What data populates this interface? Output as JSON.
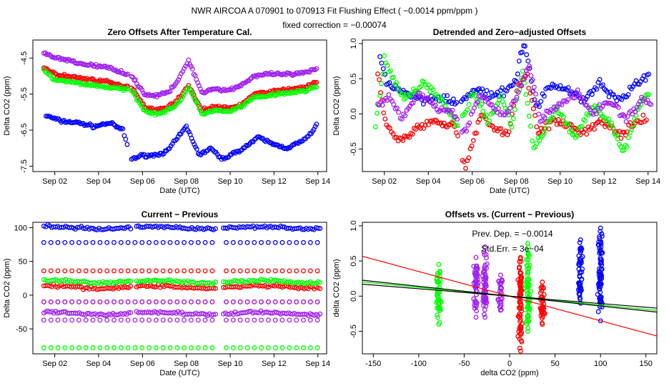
{
  "figure": {
    "title": "NWR   AIRCOA A   070901 to 070913   Fit Flushing Effect ( −0.0014 ppm/ppm )",
    "subtitle": "fixed correction = −0.00074"
  },
  "colors": {
    "blue": "#0000ff",
    "red": "#ff0000",
    "green": "#00ff00",
    "purple": "#a020f0",
    "black": "#000000"
  },
  "chart_data": [
    {
      "type": "scatter",
      "title": "Zero Offsets After Temperature Cal.",
      "xlabel": "Date (UTC)",
      "ylabel": "Delta CO2 (ppm)",
      "xlim": [
        0.5,
        13.9
      ],
      "ylim": [
        -7.65,
        -4.0
      ],
      "x_ticks": [
        {
          "v": 1.5,
          "label": "Sep 02"
        },
        {
          "v": 3.5,
          "label": "Sep 04"
        },
        {
          "v": 5.5,
          "label": "Sep 06"
        },
        {
          "v": 7.5,
          "label": "Sep 08"
        },
        {
          "v": 9.5,
          "label": "Sep 10"
        },
        {
          "v": 11.5,
          "label": "Sep 12"
        },
        {
          "v": 13.5,
          "label": "Sep 14"
        }
      ],
      "y_ticks": [
        {
          "v": -4.5,
          "label": "-4.5"
        },
        {
          "v": -5.5,
          "label": "-5.5"
        },
        {
          "v": -6.5,
          "label": "-6.5"
        },
        {
          "v": -7.5,
          "label": "-7.5"
        }
      ],
      "series": [
        {
          "name": "blue",
          "color": "#0000ff",
          "x": [
            1.1,
            1.8,
            2.6,
            3.3,
            4.0,
            4.6,
            5.0,
            5.5,
            6.0,
            6.6,
            7.0,
            7.5,
            8.1,
            8.6,
            9.1,
            9.5,
            10.1,
            10.8,
            11.5,
            12.1,
            12.8,
            13.2,
            13.5
          ],
          "y": [
            -6.1,
            -6.25,
            -6.3,
            -6.4,
            -6.3,
            -6.5,
            -7.3,
            -7.2,
            -7.2,
            -7.1,
            -6.8,
            -6.4,
            -7.2,
            -7.0,
            -7.3,
            -7.2,
            -7.0,
            -6.7,
            -6.9,
            -7.0,
            -6.8,
            -6.6,
            -6.3
          ]
        },
        {
          "name": "red",
          "color": "#ff0000",
          "x": [
            1.0,
            1.5,
            2.0,
            2.6,
            3.2,
            3.8,
            4.4,
            5.0,
            5.6,
            6.1,
            6.7,
            7.2,
            7.6,
            8.2,
            8.8,
            9.4,
            10.0,
            10.6,
            11.2,
            11.8,
            12.4,
            13.0,
            13.5
          ],
          "y": [
            -4.75,
            -4.95,
            -5.0,
            -5.05,
            -5.1,
            -5.15,
            -5.25,
            -5.3,
            -5.85,
            -5.95,
            -5.85,
            -5.6,
            -5.25,
            -5.95,
            -5.85,
            -5.9,
            -5.8,
            -5.5,
            -5.45,
            -5.4,
            -5.35,
            -5.3,
            -5.15
          ]
        },
        {
          "name": "green",
          "color": "#00ff00",
          "x": [
            1.0,
            1.5,
            2.0,
            2.6,
            3.2,
            3.8,
            4.4,
            5.0,
            5.6,
            6.1,
            6.7,
            7.2,
            7.6,
            8.2,
            8.8,
            9.4,
            10.0,
            10.6,
            11.2,
            11.8,
            12.4,
            13.0,
            13.5
          ],
          "y": [
            -4.85,
            -5.1,
            -5.15,
            -5.2,
            -5.25,
            -5.3,
            -5.35,
            -5.4,
            -5.95,
            -6.05,
            -5.95,
            -5.7,
            -5.3,
            -6.05,
            -5.95,
            -6.0,
            -5.85,
            -5.6,
            -5.55,
            -5.5,
            -5.45,
            -5.4,
            -5.25
          ]
        },
        {
          "name": "purple",
          "color": "#a020f0",
          "x": [
            1.0,
            1.5,
            2.0,
            2.6,
            3.2,
            3.8,
            4.4,
            5.0,
            5.6,
            6.1,
            6.7,
            7.2,
            7.6,
            8.2,
            8.8,
            9.4,
            10.0,
            10.6,
            11.2,
            11.8,
            12.4,
            13.0,
            13.5
          ],
          "y": [
            -4.35,
            -4.5,
            -4.55,
            -4.65,
            -4.7,
            -4.75,
            -4.85,
            -5.0,
            -5.5,
            -5.55,
            -5.45,
            -5.05,
            -4.55,
            -5.45,
            -5.35,
            -5.4,
            -5.25,
            -5.0,
            -4.95,
            -4.95,
            -4.95,
            -4.9,
            -4.8
          ]
        }
      ]
    },
    {
      "type": "scatter",
      "title": "Detrended and Zero−adjusted Offsets",
      "xlabel": "Date (UTC)",
      "ylabel": "Delta CO2 (ppm)",
      "xlim": [
        0.5,
        13.9
      ],
      "ylim": [
        -0.82,
        1.05
      ],
      "x_ticks": [
        {
          "v": 1.5,
          "label": "Sep 02"
        },
        {
          "v": 3.5,
          "label": "Sep 04"
        },
        {
          "v": 5.5,
          "label": "Sep 06"
        },
        {
          "v": 7.5,
          "label": "Sep 08"
        },
        {
          "v": 9.5,
          "label": "Sep 10"
        },
        {
          "v": 11.5,
          "label": "Sep 12"
        },
        {
          "v": 13.5,
          "label": "Sep 14"
        }
      ],
      "y_ticks": [
        {
          "v": -0.5,
          "label": "-0.5"
        },
        {
          "v": 0.0,
          "label": "0.0"
        },
        {
          "v": 0.5,
          "label": "0.5"
        },
        {
          "v": 1.0,
          "label": "1.0"
        }
      ],
      "series": [
        {
          "name": "blue",
          "color": "#0000ff",
          "x": [
            1.3,
            1.6,
            2.5,
            3.2,
            4.0,
            5.0,
            5.6,
            6.3,
            7.0,
            7.5,
            7.7,
            7.9,
            8.4,
            9.0,
            9.8,
            10.6,
            11.3,
            12.0,
            12.6,
            13.6
          ],
          "y": [
            0.82,
            0.45,
            0.3,
            0.2,
            0.25,
            0.15,
            0.35,
            0.25,
            0.3,
            0.5,
            0.85,
            0.97,
            0.1,
            0.4,
            0.35,
            0.2,
            0.45,
            0.2,
            0.3,
            0.6
          ]
        },
        {
          "name": "red",
          "color": "#ff0000",
          "x": [
            1.2,
            1.6,
            2.2,
            3.0,
            3.8,
            4.7,
            5.2,
            5.9,
            6.5,
            7.1,
            7.6,
            8.0,
            8.5,
            9.2,
            10.0,
            10.7,
            11.4,
            12.2,
            12.9,
            13.5
          ],
          "y": [
            0.55,
            -0.15,
            -0.4,
            -0.2,
            -0.1,
            -0.15,
            -0.78,
            0.0,
            -0.2,
            -0.3,
            0.4,
            0.55,
            -0.25,
            -0.1,
            -0.2,
            -0.25,
            -0.1,
            -0.3,
            -0.15,
            -0.05
          ]
        },
        {
          "name": "green",
          "color": "#00ff00",
          "x": [
            1.1,
            1.5,
            2.4,
            3.3,
            4.2,
            4.9,
            5.5,
            6.2,
            6.8,
            7.3,
            7.8,
            8.3,
            8.7,
            9.3,
            10.2,
            11.0,
            11.7,
            12.4,
            13.1,
            13.6
          ],
          "y": [
            -0.2,
            0.75,
            0.2,
            0.45,
            0.15,
            -0.2,
            0.3,
            -0.1,
            0.25,
            -0.15,
            0.6,
            -0.5,
            -0.3,
            0.1,
            -0.35,
            0.15,
            -0.1,
            -0.55,
            0.1,
            0.3
          ]
        },
        {
          "name": "purple",
          "color": "#a020f0",
          "x": [
            1.2,
            1.7,
            2.3,
            3.1,
            3.9,
            4.6,
            5.1,
            5.8,
            6.4,
            7.0,
            7.6,
            8.1,
            8.6,
            9.5,
            10.3,
            11.0,
            11.8,
            12.5,
            13.2,
            13.7
          ],
          "y": [
            0.1,
            0.25,
            -0.05,
            0.3,
            0.1,
            0.05,
            -0.3,
            0.25,
            0.1,
            -0.05,
            0.3,
            0.7,
            -0.1,
            0.15,
            0.3,
            0.0,
            0.2,
            -0.1,
            0.2,
            0.15
          ]
        }
      ]
    },
    {
      "type": "scatter",
      "title": "Current − Previous",
      "xlabel": "Date (UTC)",
      "ylabel": "Delta CO2 (ppm)",
      "xlim": [
        0.5,
        13.9
      ],
      "ylim": [
        -87,
        108
      ],
      "x_ticks": [
        {
          "v": 1.5,
          "label": "Sep 02"
        },
        {
          "v": 3.5,
          "label": "Sep 04"
        },
        {
          "v": 5.5,
          "label": "Sep 06"
        },
        {
          "v": 7.5,
          "label": "Sep 08"
        },
        {
          "v": 9.5,
          "label": "Sep 10"
        },
        {
          "v": 11.5,
          "label": "Sep 12"
        },
        {
          "v": 13.5,
          "label": "Sep 14"
        }
      ],
      "y_ticks": [
        {
          "v": -50,
          "label": "-50"
        },
        {
          "v": 0,
          "label": "0"
        },
        {
          "v": 50,
          "label": "50"
        },
        {
          "v": 100,
          "label": "100"
        }
      ],
      "gaps": [
        [
          5.0,
          5.15
        ],
        [
          8.9,
          9.15
        ]
      ],
      "series": [
        {
          "name": "blue",
          "color": "#0000ff",
          "levels": [
            100,
            78
          ]
        },
        {
          "name": "red",
          "color": "#ff0000",
          "levels": [
            36,
            12,
            -10
          ]
        },
        {
          "name": "green",
          "color": "#00ff00",
          "levels": [
            20,
            -78
          ]
        },
        {
          "name": "purple",
          "color": "#a020f0",
          "levels": [
            -10,
            -27,
            -37
          ]
        }
      ]
    },
    {
      "type": "scatter",
      "title": "Offsets vs. (Current − Previous)",
      "xlabel": "delta CO2 (ppm)",
      "ylabel": "delta CO2 (ppm)",
      "xlim": [
        -162,
        162
      ],
      "ylim": [
        -0.82,
        1.05
      ],
      "x_ticks": [
        {
          "v": -150,
          "label": "-150"
        },
        {
          "v": -100,
          "label": "-100"
        },
        {
          "v": -50,
          "label": "-50"
        },
        {
          "v": 0,
          "label": "0"
        },
        {
          "v": 50,
          "label": "50"
        },
        {
          "v": 100,
          "label": "100"
        },
        {
          "v": 150,
          "label": "150"
        }
      ],
      "y_ticks": [
        {
          "v": -0.5,
          "label": "-0.5"
        },
        {
          "v": 0.0,
          "label": "0.0"
        },
        {
          "v": 0.5,
          "label": "0.5"
        },
        {
          "v": 1.0,
          "label": "1.0"
        }
      ],
      "annotations": [
        "Prev. Dep. =  −0.0014",
        "Std.Err. =  3e−04"
      ],
      "clusters": [
        {
          "color": "#00ff00",
          "x": -78,
          "ymin": -0.4,
          "ymax": 0.45
        },
        {
          "color": "#a020f0",
          "x": -37,
          "ymin": -0.3,
          "ymax": 0.55
        },
        {
          "color": "#a020f0",
          "x": -27,
          "ymin": -0.3,
          "ymax": 0.7
        },
        {
          "color": "#a020f0",
          "x": -10,
          "ymin": -0.2,
          "ymax": 0.3
        },
        {
          "color": "#ff0000",
          "x": 12,
          "ymin": -0.78,
          "ymax": 0.55
        },
        {
          "color": "#00ff00",
          "x": 20,
          "ymin": -0.5,
          "ymax": 0.75
        },
        {
          "color": "#ff0000",
          "x": 36,
          "ymin": -0.4,
          "ymax": 0.2
        },
        {
          "color": "#0000ff",
          "x": 78,
          "ymin": -0.1,
          "ymax": 0.8
        },
        {
          "color": "#0000ff",
          "x": 100,
          "ymin": -0.35,
          "ymax": 0.97
        }
      ],
      "fit_lines": [
        {
          "name": "red-fit",
          "color": "#ff0000",
          "slope": -0.0035,
          "intercept": 0.0
        },
        {
          "name": "green-fit",
          "color": "#00ff00",
          "slope": -0.00125,
          "intercept": 0.0
        },
        {
          "name": "black-fit-1",
          "color": "#000000",
          "slope": -0.0014,
          "intercept": 0.0
        },
        {
          "name": "black-fit-2",
          "color": "#000000",
          "slope": -0.00105,
          "intercept": 0.0
        }
      ]
    }
  ]
}
